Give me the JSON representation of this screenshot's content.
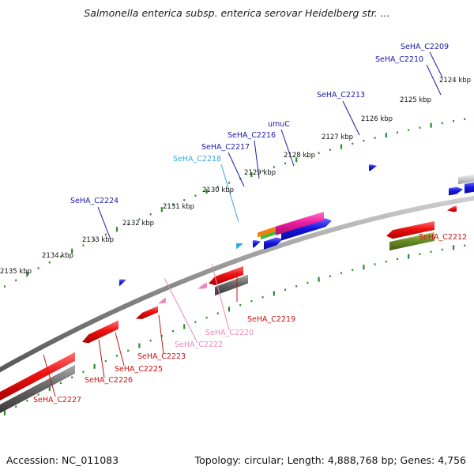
{
  "title": "Salmonella enterica subsp. enterica serovar Heidelberg str. ...",
  "footer": {
    "accession": "Accession: NC_011083",
    "summary": "Topology: circular; Length: 4,888,768 bp; Genes: 4,756"
  },
  "ticks": [
    "2124 kbp",
    "2125 kbp",
    "2126 kbp",
    "2127 kbp",
    "2128 kbp",
    "2129 kbp",
    "2130 kbp",
    "2131 kbp",
    "2132 kbp",
    "2133 kbp",
    "2134 kbp",
    "2135 kbp"
  ],
  "labels": [
    {
      "text": "SeHA_C2209",
      "color": "#1a1aaa"
    },
    {
      "text": "SeHA_C2210",
      "color": "#1a1aaa"
    },
    {
      "text": "SeHA_C2213",
      "color": "#1a1aaa"
    },
    {
      "text": "umuC",
      "color": "#1a1aaa"
    },
    {
      "text": "SeHA_C2216",
      "color": "#1a1aaa"
    },
    {
      "text": "SeHA_C2217",
      "color": "#1a1aaa"
    },
    {
      "text": "SeHA_C2218",
      "color": "#33aadd"
    },
    {
      "text": "SeHA_C2224",
      "color": "#1a1aaa"
    },
    {
      "text": "SeHA_C2212",
      "color": "#cc1111"
    },
    {
      "text": "SeHA_C2219",
      "color": "#cc1111"
    },
    {
      "text": "SeHA_C2220",
      "color": "#ee88bb"
    },
    {
      "text": "SeHA_C2222",
      "color": "#ee88bb"
    },
    {
      "text": "SeHA_C2223",
      "color": "#cc1111"
    },
    {
      "text": "SeHA_C2225",
      "color": "#cc1111"
    },
    {
      "text": "SeHA_C2226",
      "color": "#cc1111"
    },
    {
      "text": "SeHA_C2227",
      "color": "#cc1111"
    }
  ],
  "colors": {
    "backbone": "#8a8a8a",
    "tick": "#2a8a2a",
    "forward_cds": "#1515e0",
    "reverse_cds": "#e01010",
    "gray_feature": "#666666",
    "olive_feature": "#6b8e23",
    "pink_feature": "#ee1ea0",
    "orange_feature": "#f08010",
    "green_feature": "#33bb33"
  }
}
